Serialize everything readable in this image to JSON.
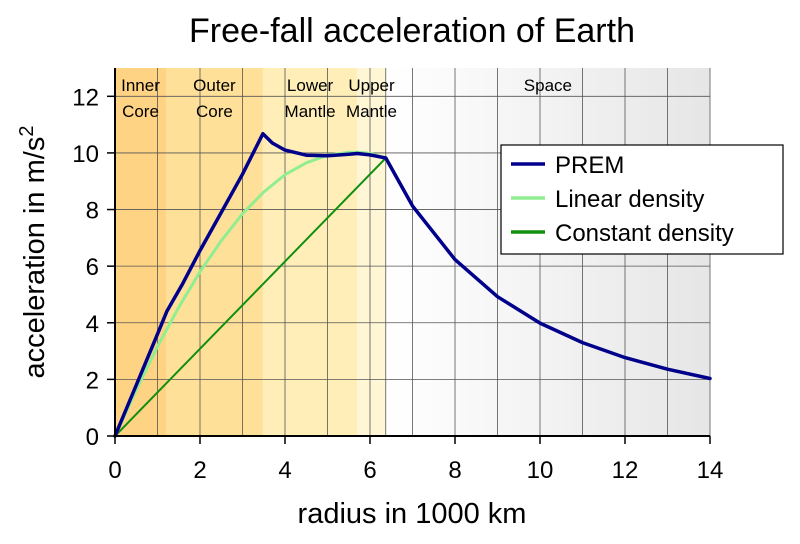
{
  "chart_data": {
    "type": "line",
    "title": "Free-fall acceleration of Earth",
    "xlabel": "radius in 1000 km",
    "ylabel": "acceleration in m/s",
    "ylabel_sup": "2",
    "xlim": [
      0,
      14
    ],
    "ylim": [
      0,
      13
    ],
    "xticks": [
      0,
      2,
      4,
      6,
      8,
      10,
      12,
      14
    ],
    "yticks": [
      0,
      2,
      4,
      6,
      8,
      10,
      12
    ],
    "grid": true,
    "legend_position": "right",
    "regions": [
      {
        "name_lines": [
          "Inner",
          "Core"
        ],
        "x_range": [
          0,
          1.2
        ],
        "color": "#fed383"
      },
      {
        "name_lines": [
          "Outer",
          "Core"
        ],
        "x_range": [
          1.2,
          3.48
        ],
        "color": "#ffe098"
      },
      {
        "name_lines": [
          "Lower",
          "Mantle"
        ],
        "x_range": [
          3.48,
          5.7
        ],
        "color": "#ffeeb7"
      },
      {
        "name_lines": [
          "Upper",
          "Mantle"
        ],
        "x_range": [
          5.7,
          6.371
        ],
        "color": "#fff6d6"
      },
      {
        "name_lines": [
          "Space"
        ],
        "x_range": [
          6.371,
          14
        ],
        "color": "gradient"
      }
    ],
    "series": [
      {
        "name": "PREM",
        "color": "#00008b",
        "points": [
          [
            0,
            0
          ],
          [
            0.5,
            1.8
          ],
          [
            1.0,
            3.6
          ],
          [
            1.22,
            4.4
          ],
          [
            1.6,
            5.4
          ],
          [
            2.0,
            6.55
          ],
          [
            2.5,
            7.9
          ],
          [
            3.0,
            9.25
          ],
          [
            3.48,
            10.68
          ],
          [
            3.7,
            10.35
          ],
          [
            4.0,
            10.1
          ],
          [
            4.5,
            9.92
          ],
          [
            5.0,
            9.9
          ],
          [
            5.5,
            9.95
          ],
          [
            5.7,
            9.98
          ],
          [
            6.0,
            9.93
          ],
          [
            6.371,
            9.82
          ],
          [
            7,
            8.13
          ],
          [
            8,
            6.23
          ],
          [
            9,
            4.92
          ],
          [
            10,
            3.99
          ],
          [
            11,
            3.3
          ],
          [
            12,
            2.77
          ],
          [
            13,
            2.36
          ],
          [
            14,
            2.03
          ]
        ]
      },
      {
        "name": "Linear density",
        "color": "#90ee90",
        "points": [
          [
            0,
            0
          ],
          [
            0.5,
            1.63
          ],
          [
            1.0,
            3.16
          ],
          [
            1.5,
            4.55
          ],
          [
            2.0,
            5.8
          ],
          [
            2.5,
            6.9
          ],
          [
            3.0,
            7.85
          ],
          [
            3.5,
            8.62
          ],
          [
            4.0,
            9.23
          ],
          [
            4.5,
            9.65
          ],
          [
            5.0,
            9.92
          ],
          [
            5.5,
            10.02
          ],
          [
            5.8,
            10.02
          ],
          [
            6.0,
            9.98
          ],
          [
            6.371,
            9.82
          ]
        ]
      },
      {
        "name": "Constant density",
        "color": "#109010",
        "points": [
          [
            0,
            0
          ],
          [
            6.371,
            9.82
          ]
        ]
      }
    ]
  }
}
